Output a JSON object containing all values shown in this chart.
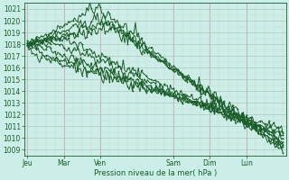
{
  "title": "",
  "xlabel": "Pression niveau de la mer( hPa )",
  "bg_color": "#cceee8",
  "line_color": "#1a5c28",
  "ylim": [
    1008.5,
    1021.5
  ],
  "yticks": [
    1009,
    1010,
    1011,
    1012,
    1013,
    1014,
    1015,
    1016,
    1017,
    1018,
    1019,
    1020,
    1021
  ],
  "x_days": [
    "Jeu",
    "Mar",
    "Ven",
    "Sam",
    "Dim",
    "Lun"
  ],
  "x_day_ticks": [
    0,
    24,
    48,
    96,
    120,
    144
  ],
  "total_hours": 168,
  "line_width": 0.7,
  "marker_size": 1.8,
  "grid_v_color": "#c0b0b0",
  "grid_h_color": "#b0c8b8",
  "grid_fine_v_color": "#d8c8c8",
  "grid_fine_h_color": "#c8dcd0"
}
